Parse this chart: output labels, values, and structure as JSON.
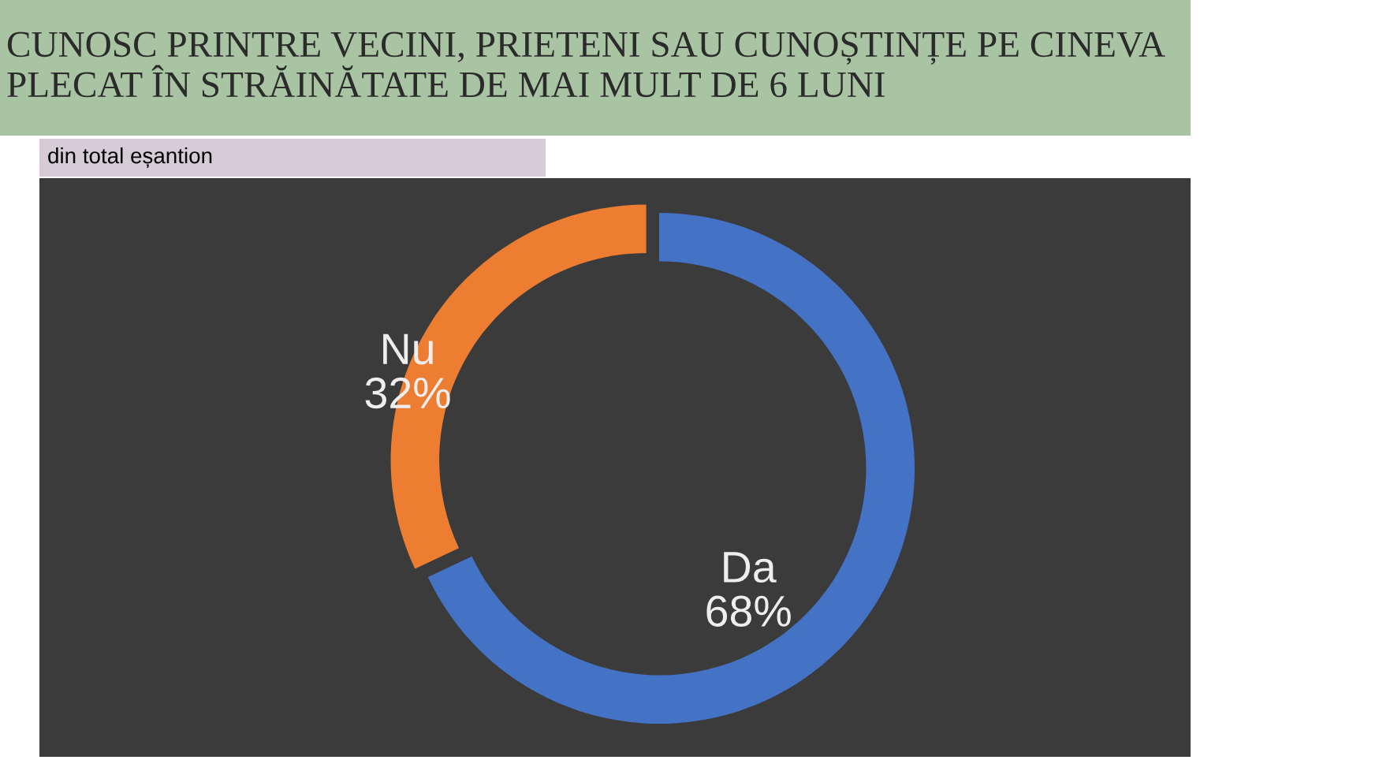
{
  "chart_data": {
    "type": "donut",
    "title": "CUNOSC PRINTRE VECINI, PRIETENI SAU CUNOȘTINȚE PE CINEVA\nPLECAT ÎN STRĂINĂTATE DE MAI MULT DE 6 LUNI",
    "subtitle": "din total eșantion",
    "categories": [
      "Da",
      "Nu"
    ],
    "values": [
      68,
      32
    ],
    "colors": [
      "#4472c4",
      "#ed7d31"
    ],
    "value_labels": [
      "68%",
      "32%"
    ],
    "legend": false
  }
}
